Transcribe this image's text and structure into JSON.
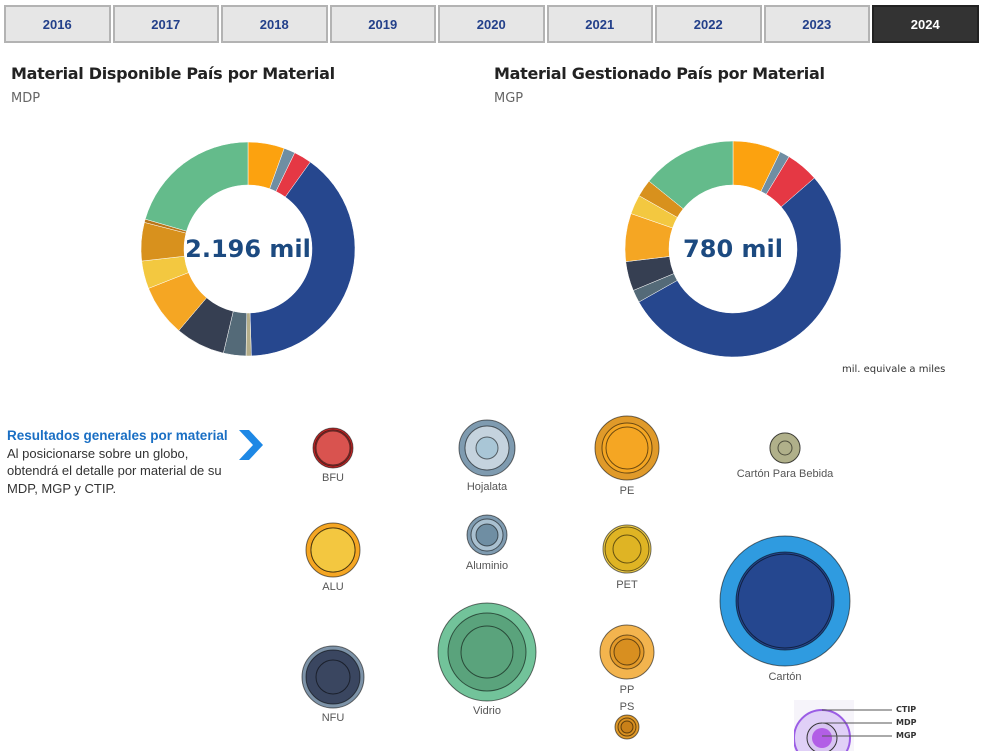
{
  "year_tabs": {
    "items": [
      "2016",
      "2017",
      "2018",
      "2019",
      "2020",
      "2021",
      "2022",
      "2023",
      "2024"
    ],
    "selected": "2024"
  },
  "mdp_card": {
    "title": "Material Disponible País por Material",
    "subtitle": "MDP",
    "total": "2.196 mil"
  },
  "mgp_card": {
    "title": "Material Gestionado País por Material",
    "subtitle": "MGP",
    "total": "780 mil",
    "note": "mil. equivale a miles"
  },
  "info": {
    "heading": "Resultados generales por material",
    "text": "Al posicionarse sobre un globo, obtendrá el detalle por material de su MDP, MGP y CTIP."
  },
  "bubbles": [
    {
      "label": "BFU",
      "colors": [
        "#c62828",
        "#d9534f",
        "#d9534f"
      ]
    },
    {
      "label": "ALU",
      "colors": [
        "#f5a623",
        "#f3c740",
        "#f3c740"
      ]
    },
    {
      "label": "NFU",
      "colors": [
        "#7d93a8",
        "#3a4660",
        "#3a4660"
      ]
    },
    {
      "label": "Hojalata",
      "colors": [
        "#7f9bb0",
        "#c5d3de",
        "#a9c6d6"
      ]
    },
    {
      "label": "Aluminio",
      "colors": [
        "#7f9bb0",
        "#a9c0d0",
        "#6f8ea3"
      ]
    },
    {
      "label": "Vidrio",
      "colors": [
        "#72c39a",
        "#5aa37c",
        "#5aa37c"
      ]
    },
    {
      "label": "PE",
      "colors": [
        "#e09a2a",
        "#f5a623",
        "#f5a623"
      ]
    },
    {
      "label": "PET",
      "colors": [
        "#f3d04a",
        "#dfb424",
        "#dfb424"
      ]
    },
    {
      "label": "PP",
      "colors": [
        "#f3b44e",
        "#e39a2a",
        "#d88f20"
      ]
    },
    {
      "label": "PS",
      "colors": [
        "#e09a2a",
        "#d88f20",
        "#c98018"
      ]
    },
    {
      "label": "Cartón Para Bebida",
      "colors": [
        "#b0b08a",
        "#b0b08a",
        "#b0b08a"
      ]
    },
    {
      "label": "Cartón",
      "colors": [
        "#2f9be0",
        "#25478f",
        "#25478f"
      ]
    }
  ],
  "legend": {
    "ctip": "CTIP",
    "mdp": "MDP",
    "mgp": "MGP"
  },
  "chart_data": [
    {
      "type": "pie",
      "subtitle": "MDP",
      "center_label": "2.196 mil",
      "hole": true,
      "values": [
        5.5,
        1.7,
        2.7,
        39.6,
        0.8,
        3.4,
        7.5,
        7.8,
        4.2,
        5.8,
        0.5,
        20.5
      ],
      "colors": [
        "#fca20f",
        "#6f8ea3",
        "#e53844",
        "#26478e",
        "#b4ae8a",
        "#546a78",
        "#363f52",
        "#f5a623",
        "#f3c840",
        "#d8911d",
        "#b8761a",
        "#64bb8b"
      ]
    },
    {
      "type": "pie",
      "subtitle": "MGP",
      "center_label": "780 mil",
      "hole": true,
      "values": [
        7.2,
        1.5,
        4.9,
        53.3,
        1.9,
        4.4,
        7.2,
        2.9,
        2.6,
        14.2
      ],
      "colors": [
        "#fca20f",
        "#6f8ea3",
        "#e53844",
        "#26478e",
        "#546a78",
        "#363f52",
        "#f5a623",
        "#f3c840",
        "#d8911d",
        "#64bb8b"
      ]
    }
  ]
}
